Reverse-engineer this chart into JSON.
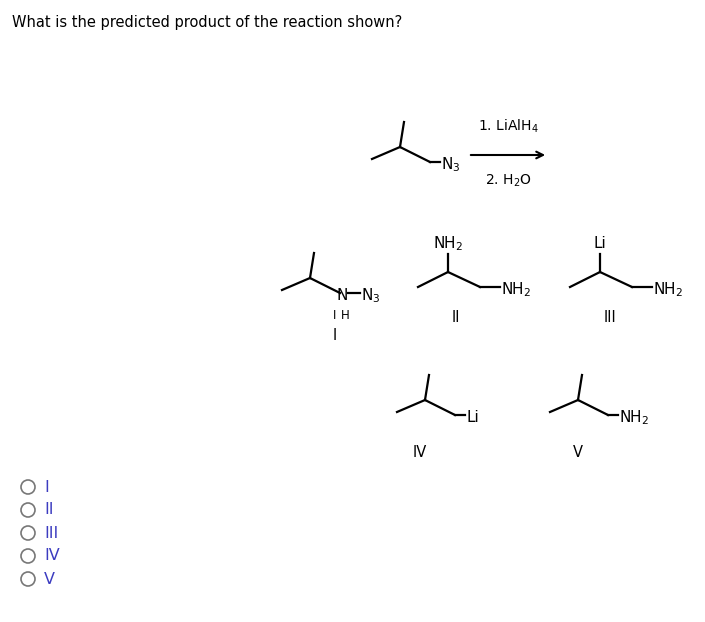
{
  "title": "What is the predicted product of the reaction shown?",
  "title_fontsize": 10.5,
  "background_color": "#ffffff",
  "text_color": "#000000",
  "choices": [
    "I",
    "II",
    "III",
    "IV",
    "V"
  ],
  "choice_colors": [
    "#000000",
    "#000000",
    "#000000",
    "#000000",
    "#000000"
  ],
  "label_colors": [
    "#3333cc",
    "#3333cc",
    "#3333cc",
    "#3333cc",
    "#3333cc"
  ],
  "fig_width": 7.05,
  "fig_height": 6.22,
  "dpi": 100
}
